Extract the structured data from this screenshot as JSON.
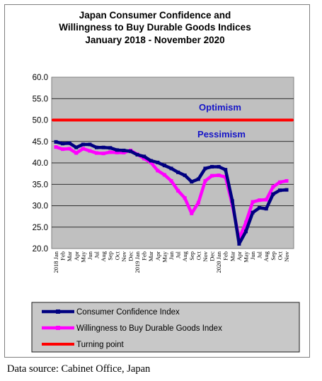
{
  "chart_data": {
    "type": "line",
    "title": [
      "Japan Consumer Confidence and",
      "Willingness to Buy Durable Goods Indices",
      "January 2018 - November 2020"
    ],
    "ylim": [
      20,
      60
    ],
    "yticks": [
      "20.0",
      "25.0",
      "30.0",
      "35.0",
      "40.0",
      "45.0",
      "50.0",
      "55.0",
      "60.0"
    ],
    "x": [
      "2018 Jan",
      "Feb",
      "Mar",
      "Apr",
      "May",
      "Jun",
      "Jul",
      "Aug",
      "Sep",
      "Oct",
      "Nov",
      "Dec",
      "2019 Jan",
      "Feb",
      "Mar",
      "Apr",
      "May",
      "Jun",
      "Jul",
      "Aug",
      "Sep",
      "Oct",
      "Nov",
      "Dec",
      "2020 Jan",
      "Feb",
      "Mar",
      "Apr",
      "May",
      "Jun",
      "Jul",
      "Aug",
      "Sep",
      "Oct",
      "Nov"
    ],
    "series": [
      {
        "name": "Consumer Confidence Index",
        "color": "#000080",
        "values": [
          44.9,
          44.5,
          44.6,
          43.6,
          44.3,
          44.3,
          43.6,
          43.6,
          43.5,
          43.0,
          42.9,
          42.7,
          41.9,
          41.5,
          40.5,
          40.1,
          39.4,
          38.7,
          37.8,
          37.1,
          35.6,
          36.2,
          38.7,
          39.1,
          39.1,
          38.4,
          31.1,
          21.1,
          24.0,
          28.4,
          29.5,
          29.3,
          32.7,
          33.6,
          33.7
        ]
      },
      {
        "name": "Willingness to Buy Durable Goods Index",
        "color": "#ff00ff",
        "values": [
          43.7,
          43.2,
          43.3,
          42.3,
          43.3,
          42.8,
          42.3,
          42.2,
          42.5,
          42.4,
          42.4,
          42.9,
          42.0,
          41.0,
          40.1,
          38.2,
          37.2,
          35.8,
          33.5,
          31.8,
          28.2,
          30.7,
          35.8,
          37.0,
          37.1,
          36.7,
          30.2,
          22.3,
          26.1,
          30.9,
          31.3,
          31.4,
          34.4,
          35.5,
          35.8
        ]
      },
      {
        "name": "Turning point",
        "color": "#ff0000",
        "values": [
          50,
          50,
          50,
          50,
          50,
          50,
          50,
          50,
          50,
          50,
          50,
          50,
          50,
          50,
          50,
          50,
          50,
          50,
          50,
          50,
          50,
          50,
          50,
          50,
          50,
          50,
          50,
          50,
          50,
          50,
          50,
          50,
          50,
          50,
          50
        ]
      }
    ],
    "annotations": [
      "Optimism",
      "Pessimism"
    ],
    "grid": true,
    "legend_position": "bottom"
  },
  "source": "Data source: Cabinet Office, Japan"
}
